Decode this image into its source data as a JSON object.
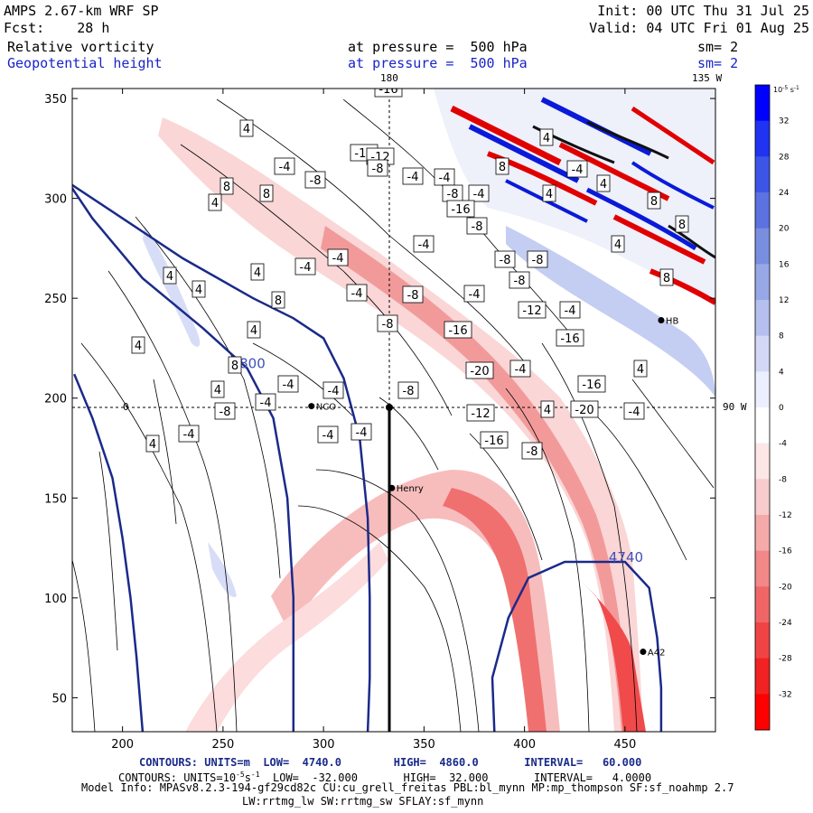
{
  "header": {
    "line1_left": "AMPS 2.67-km WRF SP",
    "line2_left": "Fcst:    28 h",
    "line1_right": "Init: 00 UTC Thu 31 Jul 25",
    "line2_right": "Valid: 04 UTC Fri 01 Aug 25",
    "field1": "Relative vorticity",
    "field1_level": "at pressure =  500 hPa",
    "field1_sm": "sm= 2",
    "field2": "Geopotential height",
    "field2_level": "at pressure =  500 hPa",
    "field2_sm": "sm= 2",
    "lon_top_label": "180",
    "lon_right_label": "135 W",
    "lat_label": "90 W",
    "zero_label": "0"
  },
  "footer": {
    "line1": "CONTOURS: UNITS=m  LOW=  4740.0        HIGH=  4860.0       INTERVAL=   60.000",
    "line2": "CONTOURS: UNITS=10",
    "line2_exp": "-5",
    "line2_rest": "s",
    "line2_exp2": "-1",
    "line2_tail": "  LOW=  -32.000       HIGH=  32.000       INTERVAL=   4.0000",
    "line3": "Model Info: MPASv8.2.3-194-gf29cd82c CU:cu_grell_freitas PBL:bl_mynn MP:mp_thompson SF:sf_noahmp 2.7",
    "line4": "LW:rrtmg_lw SW:rrtmg_sw SFLAY:sf_mynn"
  },
  "stations": [
    {
      "name": "NCO",
      "x": 294,
      "y": 196
    },
    {
      "name": "Henry",
      "x": 334,
      "y": 155
    },
    {
      "name": "HB",
      "x": 468,
      "y": 239
    },
    {
      "name": "A42",
      "x": 459,
      "y": 73
    }
  ],
  "chart_data": {
    "type": "heatmap",
    "xlim": [
      175,
      495
    ],
    "ylim": [
      33,
      355
    ],
    "xticks": [
      200,
      250,
      300,
      350,
      400,
      450
    ],
    "yticks": [
      50,
      100,
      150,
      200,
      250,
      300,
      350
    ],
    "grid_lines": {
      "x": 334,
      "y": 196
    },
    "colorbar": {
      "unit_label": "10",
      "unit_exp": "-5",
      "unit_tail": " s",
      "unit_exp2": "-1",
      "ticks": [
        32,
        28,
        24,
        20,
        16,
        12,
        8,
        4,
        0,
        -4,
        -8,
        -12,
        -16,
        -20,
        -24,
        -28,
        -32
      ],
      "colors": [
        "#0000ff",
        "#1f33f0",
        "#3d55e6",
        "#5b72e0",
        "#7a8ee0",
        "#98a8e6",
        "#b5c0ee",
        "#d2d8f6",
        "#ecefff",
        "#ffffff",
        "#fce6e6",
        "#f8cccc",
        "#f5aaaa",
        "#f28888",
        "#f06666",
        "#f04444",
        "#f02222",
        "#ff0000"
      ]
    },
    "height_contours": [
      {
        "label": "4800",
        "points": [
          [
            151,
            355
          ],
          [
            165,
            320
          ],
          [
            185,
            290
          ],
          [
            210,
            260
          ],
          [
            240,
            235
          ],
          [
            262,
            215
          ],
          [
            275,
            190
          ],
          [
            282,
            150
          ],
          [
            285,
            100
          ],
          [
            285,
            33
          ]
        ]
      },
      {
        "label": "",
        "points": [
          [
            130,
            350
          ],
          [
            145,
            330
          ],
          [
            170,
            310
          ],
          [
            200,
            290
          ],
          [
            230,
            270
          ],
          [
            265,
            250
          ],
          [
            285,
            240
          ],
          [
            300,
            230
          ],
          [
            310,
            210
          ],
          [
            318,
            180
          ],
          [
            322,
            140
          ],
          [
            323,
            100
          ],
          [
            323,
            60
          ],
          [
            322,
            33
          ]
        ]
      },
      {
        "label": "",
        "points": [
          [
            176,
            212
          ],
          [
            185,
            190
          ],
          [
            195,
            160
          ],
          [
            200,
            130
          ],
          [
            204,
            100
          ],
          [
            207,
            70
          ],
          [
            210,
            33
          ]
        ]
      },
      {
        "label": "4740",
        "points": [
          [
            385,
            33
          ],
          [
            384,
            60
          ],
          [
            392,
            90
          ],
          [
            402,
            110
          ],
          [
            420,
            118
          ],
          [
            450,
            118
          ],
          [
            462,
            105
          ],
          [
            466,
            80
          ],
          [
            468,
            55
          ],
          [
            468,
            33
          ]
        ]
      }
    ],
    "vorticity_labels": [
      {
        "v": -16,
        "x": 350,
        "y": 352
      },
      {
        "v": 4,
        "x": 193,
        "y": 308
      },
      {
        "v": -12,
        "x": 323,
        "y": 281
      },
      {
        "v": -12,
        "x": 341,
        "y": 277
      },
      {
        "v": -8,
        "x": 338,
        "y": 264
      },
      {
        "v": -4,
        "x": 235,
        "y": 266
      },
      {
        "v": -8,
        "x": 269,
        "y": 251
      },
      {
        "v": 8,
        "x": 171,
        "y": 244
      },
      {
        "v": 8,
        "x": 215,
        "y": 236
      },
      {
        "v": 4,
        "x": 158,
        "y": 226
      },
      {
        "v": -4,
        "x": 377,
        "y": 255
      },
      {
        "v": -4,
        "x": 412,
        "y": 254
      },
      {
        "v": 8,
        "x": 476,
        "y": 266
      },
      {
        "v": 4,
        "x": 525,
        "y": 298
      },
      {
        "v": -4,
        "x": 559,
        "y": 263
      },
      {
        "v": -8,
        "x": 421,
        "y": 236
      },
      {
        "v": -4,
        "x": 450,
        "y": 236
      },
      {
        "v": 4,
        "x": 528,
        "y": 236
      },
      {
        "v": 4,
        "x": 588,
        "y": 247
      },
      {
        "v": 8,
        "x": 644,
        "y": 228
      },
      {
        "v": -16,
        "x": 430,
        "y": 219
      },
      {
        "v": -8,
        "x": 448,
        "y": 200
      },
      {
        "v": 8,
        "x": 675,
        "y": 202
      },
      {
        "v": -4,
        "x": 389,
        "y": 180
      },
      {
        "v": 4,
        "x": 604,
        "y": 180
      },
      {
        "v": -4,
        "x": 294,
        "y": 165
      },
      {
        "v": -4,
        "x": 258,
        "y": 155
      },
      {
        "v": -8,
        "x": 479,
        "y": 163
      },
      {
        "v": -8,
        "x": 515,
        "y": 163
      },
      {
        "v": 8,
        "x": 658,
        "y": 143
      },
      {
        "v": 4,
        "x": 205,
        "y": 149
      },
      {
        "v": 4,
        "x": 108,
        "y": 145
      },
      {
        "v": -8,
        "x": 495,
        "y": 140
      },
      {
        "v": -4,
        "x": 445,
        "y": 125
      },
      {
        "v": -4,
        "x": 315,
        "y": 126
      },
      {
        "v": -8,
        "x": 377,
        "y": 124
      },
      {
        "v": 4,
        "x": 140,
        "y": 130
      },
      {
        "v": 8,
        "x": 228,
        "y": 118
      },
      {
        "v": -12,
        "x": 509,
        "y": 107
      },
      {
        "v": -4,
        "x": 551,
        "y": 107
      },
      {
        "v": -16,
        "x": 427,
        "y": 85
      },
      {
        "v": -8,
        "x": 349,
        "y": 92
      },
      {
        "v": 4,
        "x": 201,
        "y": 85
      },
      {
        "v": -16,
        "x": 551,
        "y": 76
      },
      {
        "v": 4,
        "x": 73,
        "y": 68
      },
      {
        "v": 8,
        "x": 180,
        "y": 46
      },
      {
        "v": -4,
        "x": 239,
        "y": 25
      },
      {
        "v": 4,
        "x": 161,
        "y": 19
      },
      {
        "v": -20,
        "x": 451,
        "y": 40
      },
      {
        "v": -4,
        "x": 496,
        "y": 42
      },
      {
        "v": 4,
        "x": 629,
        "y": 42
      },
      {
        "v": -16,
        "x": 575,
        "y": 25
      },
      {
        "v": -8,
        "x": 372,
        "y": 18
      },
      {
        "v": -4,
        "x": 289,
        "y": 18
      },
      {
        "v": -4,
        "x": 214,
        "y": 5
      },
      {
        "v": -8,
        "x": 169,
        "y": -5
      },
      {
        "v": 4,
        "x": 526,
        "y": -3
      },
      {
        "v": -20,
        "x": 567,
        "y": -3
      },
      {
        "v": -4,
        "x": 622,
        "y": -5
      },
      {
        "v": -12,
        "x": 452,
        "y": -7
      },
      {
        "v": -4,
        "x": 283,
        "y": -31
      },
      {
        "v": -4,
        "x": 320,
        "y": -28
      },
      {
        "v": -16,
        "x": 467,
        "y": -37
      },
      {
        "v": -8,
        "x": 509,
        "y": -49
      },
      {
        "v": -4,
        "x": 129,
        "y": -30
      },
      {
        "v": 4,
        "x": 89,
        "y": -41
      }
    ]
  }
}
